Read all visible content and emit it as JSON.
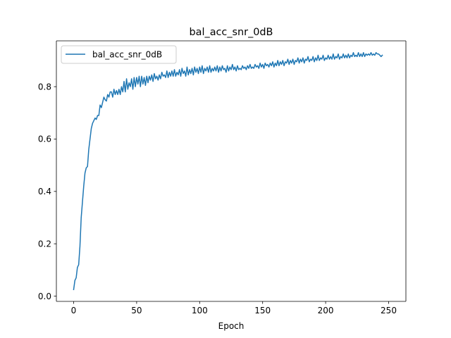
{
  "chart_data": {
    "type": "line",
    "title": "bal_acc_snr_0dB",
    "xlabel": "Epoch",
    "ylabel": "",
    "xlim": [
      -13.7,
      263.7
    ],
    "ylim": [
      -0.02,
      0.975
    ],
    "x_ticks": [
      0,
      50,
      100,
      150,
      200,
      250
    ],
    "y_ticks": [
      0.0,
      0.2,
      0.4,
      0.6,
      0.8
    ],
    "y_tick_labels": [
      "0.0",
      "0.2",
      "0.4",
      "0.6",
      "0.8"
    ],
    "grid": false,
    "legend": {
      "position": "upper-left",
      "entries": [
        "bal_acc_snr_0dB"
      ]
    },
    "colors": {
      "series": "#1f77b4"
    },
    "series": [
      {
        "name": "bal_acc_snr_0dB",
        "x_start": 0,
        "x_step": 1,
        "values": [
          0.025,
          0.06,
          0.07,
          0.11,
          0.12,
          0.19,
          0.3,
          0.36,
          0.42,
          0.47,
          0.49,
          0.495,
          0.56,
          0.6,
          0.64,
          0.66,
          0.67,
          0.68,
          0.675,
          0.69,
          0.69,
          0.73,
          0.72,
          0.74,
          0.76,
          0.75,
          0.745,
          0.77,
          0.76,
          0.78,
          0.78,
          0.76,
          0.79,
          0.77,
          0.785,
          0.77,
          0.79,
          0.77,
          0.8,
          0.78,
          0.82,
          0.78,
          0.83,
          0.79,
          0.815,
          0.8,
          0.83,
          0.79,
          0.835,
          0.8,
          0.835,
          0.81,
          0.84,
          0.8,
          0.84,
          0.81,
          0.835,
          0.805,
          0.84,
          0.815,
          0.84,
          0.825,
          0.845,
          0.82,
          0.85,
          0.83,
          0.84,
          0.825,
          0.845,
          0.83,
          0.855,
          0.84,
          0.845,
          0.835,
          0.86,
          0.835,
          0.855,
          0.84,
          0.86,
          0.84,
          0.865,
          0.84,
          0.855,
          0.845,
          0.865,
          0.84,
          0.87,
          0.85,
          0.86,
          0.84,
          0.875,
          0.845,
          0.865,
          0.85,
          0.87,
          0.845,
          0.875,
          0.855,
          0.87,
          0.85,
          0.875,
          0.855,
          0.88,
          0.85,
          0.87,
          0.86,
          0.875,
          0.855,
          0.88,
          0.855,
          0.87,
          0.86,
          0.875,
          0.86,
          0.88,
          0.855,
          0.875,
          0.86,
          0.88,
          0.865,
          0.87,
          0.855,
          0.88,
          0.86,
          0.875,
          0.865,
          0.885,
          0.865,
          0.875,
          0.86,
          0.88,
          0.865,
          0.87,
          0.865,
          0.88,
          0.87,
          0.875,
          0.865,
          0.88,
          0.87,
          0.885,
          0.87,
          0.875,
          0.87,
          0.885,
          0.875,
          0.88,
          0.87,
          0.89,
          0.875,
          0.885,
          0.87,
          0.89,
          0.88,
          0.885,
          0.875,
          0.89,
          0.88,
          0.895,
          0.875,
          0.89,
          0.88,
          0.9,
          0.88,
          0.895,
          0.885,
          0.9,
          0.88,
          0.895,
          0.89,
          0.905,
          0.885,
          0.9,
          0.89,
          0.905,
          0.885,
          0.9,
          0.895,
          0.91,
          0.89,
          0.905,
          0.895,
          0.91,
          0.89,
          0.905,
          0.9,
          0.915,
          0.895,
          0.905,
          0.9,
          0.915,
          0.895,
          0.91,
          0.9,
          0.92,
          0.9,
          0.91,
          0.905,
          0.92,
          0.9,
          0.91,
          0.905,
          0.92,
          0.905,
          0.915,
          0.905,
          0.925,
          0.905,
          0.915,
          0.91,
          0.925,
          0.905,
          0.915,
          0.91,
          0.925,
          0.91,
          0.92,
          0.91,
          0.925,
          0.91,
          0.92,
          0.915,
          0.93,
          0.915,
          0.92,
          0.915,
          0.93,
          0.915,
          0.925,
          0.915,
          0.93,
          0.915,
          0.925,
          0.92,
          0.925,
          0.92,
          0.93,
          0.92,
          0.925,
          0.92,
          0.93,
          0.925,
          0.925,
          0.92,
          0.915,
          0.92
        ]
      }
    ]
  }
}
